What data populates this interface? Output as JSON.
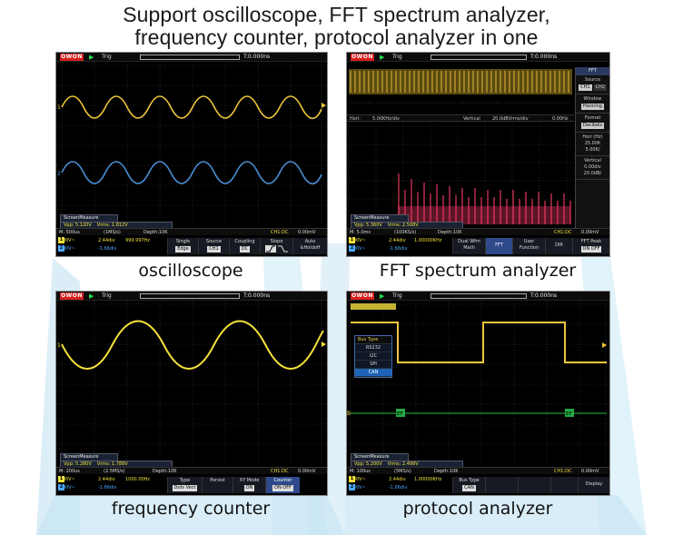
{
  "title_line1": "Support oscilloscope, FFT spectrum analyzer,",
  "title_line2": "frequency counter, protocol analyzer in one",
  "captions": {
    "osc": "oscilloscope",
    "fft": "FFT spectrum analyzer",
    "freq": "frequency counter",
    "proto": "protocol analyzer"
  },
  "common": {
    "logo": "OWON",
    "play": "▶",
    "trig": "Trig",
    "ch1": "1",
    "ch2": "2"
  },
  "colors": {
    "ch1": "#f0e03a",
    "ch2": "#4aa8ff",
    "fft": "#ff3b6a",
    "bg": "#000000",
    "grid": "#3a3a3a"
  },
  "osc": {
    "time_pos": "T:0.000ns",
    "meas_title": "ScreenMeasure",
    "vpp": "Vpp: 5.120V",
    "vrms": "Vrms: 1.812V",
    "timebase": "M: 500us",
    "rate": "(1MS/s)",
    "depth": "Depth:10K",
    "trig_info": "CH1:DC",
    "trig_level": "0.00mV",
    "ch1_scale": "2.00V~",
    "ch1_pos": "2.44div",
    "ch1_freq": "999.997Hz",
    "ch2_scale": "2.00V~",
    "ch2_pos": "-1.66div",
    "menus": [
      {
        "label": "Single",
        "sub": "Edge"
      },
      {
        "label": "Source",
        "sub": "CH1"
      },
      {
        "label": "Coupling",
        "sub": "DC"
      },
      {
        "label": "Slope",
        "sub": ""
      },
      {
        "label": "Auto",
        "sub": "&Holdoff"
      }
    ]
  },
  "fft": {
    "time_pos": "T:0.000ns",
    "info_hori": "Hori:",
    "info_hori_val": "5.00KHz/div",
    "info_vert": "Vertical",
    "info_vert_val": "20.0dBVrms/div",
    "info_mid": "0.00Hz",
    "meas_title": "ScreenMeasure",
    "vpp": "Vpp: 5.360V",
    "vrms": "Vrms: 2.508V",
    "timebase": "M: 5.0ms",
    "rate": "(100KS/s)",
    "depth": "Depth:10K",
    "trig_info": "CH1:DC",
    "trig_level": "0.00mV",
    "ch1_scale": "2.00V~",
    "ch1_pos": "2.44div",
    "ch1_freq": "1.00000KHz",
    "ch2_scale": "2.00V~",
    "ch2_pos": "-1.66div",
    "menus": [
      {
        "label": "Dual Wfm",
        "sub": "Math"
      },
      {
        "label": "FFT",
        "sub": ""
      },
      {
        "label": "User",
        "sub": "Function"
      },
      {
        "label": "DIR",
        "sub": ""
      },
      {
        "label": "FFT Peak",
        "sub": "ON OFF"
      }
    ],
    "side": {
      "head": "FFT",
      "source": "Source",
      "src_a": "CH1",
      "src_b": "CH2",
      "window": "Window",
      "window_v": "Hanning",
      "format": "Format",
      "format_v": "Decibels",
      "hori": "Hori (Hz)",
      "hori_v1": "25.00K",
      "hori_v2": "5.00K/",
      "vertical": "Vertical",
      "vert_v1": "0.00div",
      "vert_v2": "20.0dB/"
    }
  },
  "freq": {
    "time_pos": "T:0.000ns",
    "meas_title": "ScreenMeasure",
    "vpp": "Vpp: 5.280V",
    "vrms": "Vrms: 1.789V",
    "timebase": "M: 200us",
    "rate": "(2.5MS/s)",
    "depth": "Depth:10K",
    "trig_info": "CH1:DC",
    "trig_level": "0.00mV",
    "ch1_scale": "2.00V~",
    "ch1_pos": "2.44div",
    "ch1_freq": "1000.00Hz",
    "ch2_scale": "2.00V~",
    "ch2_pos": "-1.66div",
    "menus": [
      {
        "label": "Type",
        "sub": "Dots Vect"
      },
      {
        "label": "Persist",
        "sub": "&Color"
      },
      {
        "label": "XY Mode",
        "sub": "ON"
      },
      {
        "label": "Counter",
        "sub": "ON OFF"
      }
    ]
  },
  "proto": {
    "time_pos": "T:0.000ns",
    "bus_header": "Bus Type",
    "bus_items": [
      "RS232",
      "I2C",
      "SPI",
      "CAN"
    ],
    "bus_selected": "CAN",
    "frame_tag": "EF",
    "meas_title": "ScreenMeasure",
    "vpp": "Vpp: 5.200V",
    "vrms": "Vrms: 2.499V",
    "timebase": "M: 100us",
    "rate": "(5MS/s)",
    "depth": "Depth:10K",
    "trig_info": "CH1:DC",
    "trig_level": "0.00mV",
    "ch1_scale": "2.00V~",
    "ch1_pos": "2.44div",
    "ch1_freq": "1.00000KHz",
    "ch2_scale": "2.00V~",
    "ch2_pos": "-1.66div",
    "menus": [
      {
        "label": "Bus Type",
        "sub": "CAN"
      },
      {
        "label": "Display",
        "sub": ""
      }
    ]
  }
}
